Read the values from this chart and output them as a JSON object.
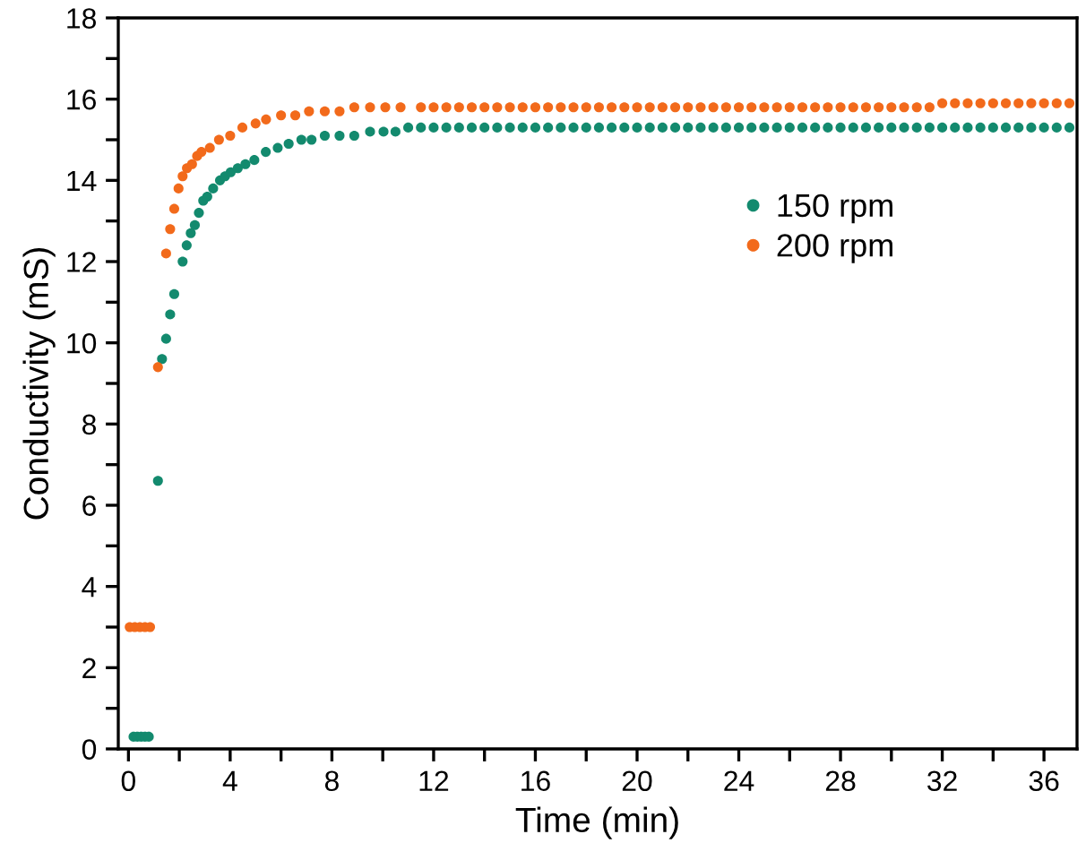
{
  "chart_data": {
    "type": "scatter",
    "xlabel": "Time (min)",
    "ylabel": "Conductivity (mS)",
    "xlim": [
      -0.4,
      37.3
    ],
    "ylim": [
      0,
      18
    ],
    "xticks": [
      0,
      {
        "value": 2,
        "label": null
      },
      4,
      {
        "value": 6,
        "label": null
      },
      8,
      {
        "value": 10,
        "label": null
      },
      12,
      {
        "value": 14,
        "label": null
      },
      16,
      {
        "value": 18,
        "label": null
      },
      20,
      {
        "value": 22,
        "label": null
      },
      24,
      {
        "value": 26,
        "label": null
      },
      28,
      {
        "value": 30,
        "label": null
      },
      32,
      {
        "value": 34,
        "label": null
      },
      36
    ],
    "yticks": [
      0,
      {
        "value": 1,
        "label": null
      },
      2,
      {
        "value": 3,
        "label": null
      },
      4,
      {
        "value": 5,
        "label": null
      },
      6,
      {
        "value": 7,
        "label": null
      },
      8,
      {
        "value": 9,
        "label": null
      },
      10,
      {
        "value": 11,
        "label": null
      },
      12,
      {
        "value": 13,
        "label": null
      },
      14,
      {
        "value": 15,
        "label": null
      },
      16,
      {
        "value": 17,
        "label": null
      },
      18
    ],
    "legend": "top right",
    "grid": false,
    "marker": "circle",
    "series": [
      {
        "name": "150 rpm",
        "color": "#138a6e",
        "x": [
          0.2,
          0.35,
          0.5,
          0.65,
          0.8,
          1.16,
          1.32,
          1.48,
          1.64,
          1.8,
          2.13,
          2.29,
          2.45,
          2.61,
          2.77,
          2.94,
          3.1,
          3.33,
          3.6,
          3.8,
          4.02,
          4.3,
          4.6,
          4.95,
          5.4,
          5.87,
          6.3,
          6.8,
          7.2,
          7.72,
          8.3,
          8.88,
          9.5,
          10.03,
          10.5,
          11,
          11.5,
          12,
          12.5,
          13,
          13.5,
          14,
          14.5,
          15,
          15.5,
          16,
          16.5,
          17,
          17.5,
          18,
          18.5,
          19,
          19.5,
          20,
          20.5,
          21,
          21.5,
          22,
          22.5,
          23,
          23.5,
          24,
          24.5,
          25,
          25.5,
          26,
          26.5,
          27,
          27.5,
          28,
          28.5,
          29,
          29.5,
          30,
          30.5,
          31,
          31.5,
          32,
          32.5,
          33,
          33.5,
          34,
          34.5,
          35,
          35.5,
          36,
          36.5,
          37
        ],
        "values": [
          0.3,
          0.3,
          0.3,
          0.3,
          0.3,
          6.6,
          9.6,
          10.1,
          10.7,
          11.2,
          12.0,
          12.4,
          12.7,
          12.9,
          13.2,
          13.5,
          13.6,
          13.8,
          14.0,
          14.1,
          14.2,
          14.3,
          14.4,
          14.5,
          14.7,
          14.8,
          14.9,
          15.0,
          15.0,
          15.1,
          15.1,
          15.1,
          15.2,
          15.2,
          15.2,
          15.3,
          15.3,
          15.3,
          15.3,
          15.3,
          15.3,
          15.3,
          15.3,
          15.3,
          15.3,
          15.3,
          15.3,
          15.3,
          15.3,
          15.3,
          15.3,
          15.3,
          15.3,
          15.3,
          15.3,
          15.3,
          15.3,
          15.3,
          15.3,
          15.3,
          15.3,
          15.3,
          15.3,
          15.3,
          15.3,
          15.3,
          15.3,
          15.3,
          15.3,
          15.3,
          15.3,
          15.3,
          15.3,
          15.3,
          15.3,
          15.3,
          15.3,
          15.3,
          15.3,
          15.3,
          15.3,
          15.3,
          15.3,
          15.3,
          15.3,
          15.3,
          15.3,
          15.3
        ]
      },
      {
        "name": "200 rpm",
        "color": "#f26a1b",
        "x": [
          0.05,
          0.25,
          0.45,
          0.65,
          0.85,
          1.16,
          1.48,
          1.64,
          1.8,
          1.97,
          2.13,
          2.3,
          2.5,
          2.7,
          2.87,
          3.2,
          3.56,
          4.0,
          4.48,
          5.0,
          5.41,
          6.0,
          6.56,
          7.1,
          7.72,
          8.3,
          8.88,
          9.5,
          10.1,
          10.7,
          11.5,
          12,
          12.5,
          13,
          13.5,
          14,
          14.5,
          15,
          15.5,
          16,
          16.5,
          17,
          17.5,
          18,
          18.5,
          19,
          19.5,
          20,
          20.5,
          21,
          21.5,
          22,
          22.5,
          23,
          23.5,
          24,
          24.5,
          25,
          25.5,
          26,
          26.5,
          27,
          27.5,
          28,
          28.5,
          29,
          29.5,
          30,
          30.5,
          31,
          31.5,
          32,
          32.5,
          33,
          33.5,
          34,
          34.5,
          35,
          35.5,
          36,
          36.5,
          37
        ],
        "values": [
          3.0,
          3.0,
          3.0,
          3.0,
          3.0,
          9.4,
          12.2,
          12.8,
          13.3,
          13.8,
          14.1,
          14.3,
          14.4,
          14.6,
          14.7,
          14.8,
          15.0,
          15.1,
          15.3,
          15.4,
          15.5,
          15.6,
          15.6,
          15.7,
          15.7,
          15.7,
          15.8,
          15.8,
          15.8,
          15.8,
          15.8,
          15.8,
          15.8,
          15.8,
          15.8,
          15.8,
          15.8,
          15.8,
          15.8,
          15.8,
          15.8,
          15.8,
          15.8,
          15.8,
          15.8,
          15.8,
          15.8,
          15.8,
          15.8,
          15.8,
          15.8,
          15.8,
          15.8,
          15.8,
          15.8,
          15.8,
          15.8,
          15.8,
          15.8,
          15.8,
          15.8,
          15.8,
          15.8,
          15.8,
          15.8,
          15.8,
          15.8,
          15.8,
          15.8,
          15.8,
          15.8,
          15.9,
          15.9,
          15.9,
          15.9,
          15.9,
          15.9,
          15.9,
          15.9,
          15.9,
          15.9,
          15.9
        ]
      }
    ]
  }
}
